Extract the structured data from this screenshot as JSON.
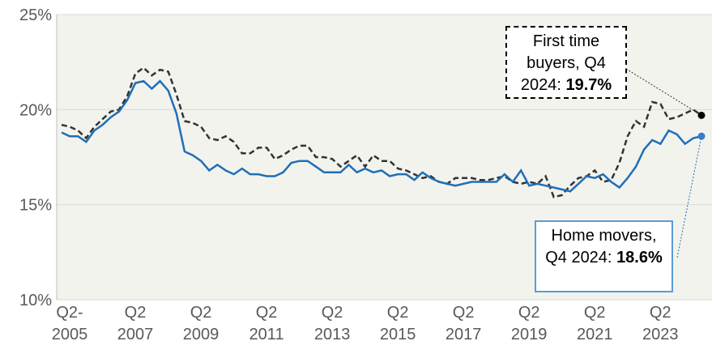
{
  "chart_data": {
    "type": "line",
    "categories": [
      "Q2-\n2005",
      null,
      null,
      null,
      null,
      null,
      null,
      null,
      "Q2\n2007",
      null,
      null,
      null,
      null,
      null,
      null,
      null,
      "Q2\n2009",
      null,
      null,
      null,
      null,
      null,
      null,
      null,
      "Q2\n2011",
      null,
      null,
      null,
      null,
      null,
      null,
      null,
      "Q2\n2013",
      null,
      null,
      null,
      null,
      null,
      null,
      null,
      "Q2\n2015",
      null,
      null,
      null,
      null,
      null,
      null,
      null,
      "Q2\n2017",
      null,
      null,
      null,
      null,
      null,
      null,
      null,
      "Q2\n2019",
      null,
      null,
      null,
      null,
      null,
      null,
      null,
      "Q2\n2021",
      null,
      null,
      null,
      null,
      null,
      null,
      null,
      "Q2\n2023",
      null,
      null,
      null,
      null,
      null,
      null
    ],
    "series": [
      {
        "color": "#333333",
        "dash": true,
        "values": [
          19.2,
          19.1,
          18.9,
          18.5,
          19.1,
          19.5,
          19.9,
          20.0,
          20.7,
          21.9,
          22.2,
          21.8,
          22.1,
          22.0,
          20.8,
          19.4,
          19.3,
          19.1,
          18.5,
          18.4,
          18.6,
          18.3,
          17.7,
          17.7,
          18.0,
          18.0,
          17.4,
          17.6,
          17.9,
          18.1,
          18.1,
          17.5,
          17.5,
          17.4,
          17.0,
          17.3,
          17.6,
          17.0,
          17.6,
          17.3,
          17.3,
          16.9,
          16.8,
          16.6,
          16.4,
          16.5,
          16.2,
          16.1,
          16.4,
          16.4,
          16.4,
          16.3,
          16.3,
          16.4,
          16.5,
          16.2,
          16.1,
          16.2,
          16.1,
          16.5,
          15.4,
          15.5,
          16.0,
          16.4,
          16.5,
          16.8,
          16.2,
          16.3,
          17.2,
          18.6,
          19.4,
          19.1,
          20.4,
          20.3,
          19.5,
          19.6,
          19.8,
          20.0,
          19.7
        ]
      },
      {
        "color": "#1f6fb8",
        "dash": false,
        "values": [
          18.8,
          18.6,
          18.6,
          18.3,
          18.9,
          19.2,
          19.6,
          19.9,
          20.5,
          21.4,
          21.5,
          21.1,
          21.5,
          21.0,
          19.8,
          17.8,
          17.6,
          17.3,
          16.8,
          17.1,
          16.8,
          16.6,
          16.9,
          16.6,
          16.6,
          16.5,
          16.5,
          16.7,
          17.2,
          17.3,
          17.3,
          17.0,
          16.7,
          16.7,
          16.7,
          17.1,
          16.7,
          16.9,
          16.7,
          16.8,
          16.5,
          16.6,
          16.6,
          16.3,
          16.7,
          16.4,
          16.2,
          16.1,
          16.0,
          16.1,
          16.2,
          16.2,
          16.2,
          16.2,
          16.6,
          16.2,
          16.8,
          16.0,
          16.1,
          16.0,
          15.9,
          15.8,
          15.7,
          16.1,
          16.5,
          16.4,
          16.6,
          16.2,
          15.9,
          16.4,
          17.0,
          17.9,
          18.4,
          18.2,
          18.9,
          18.7,
          18.2,
          18.5,
          18.6
        ]
      }
    ],
    "ylim": [
      10,
      25
    ],
    "yticks": [
      {
        "value": 10,
        "label": "10%"
      },
      {
        "value": 15,
        "label": "15%"
      },
      {
        "value": 20,
        "label": "20%"
      },
      {
        "value": 25,
        "label": "25%"
      }
    ],
    "grid": true,
    "annotations": [
      {
        "text": "First time buyers, Q4 2024:",
        "label": "19.7%"
      },
      {
        "text": "Home movers, Q4 2024:",
        "label": "18.6%"
      }
    ]
  }
}
